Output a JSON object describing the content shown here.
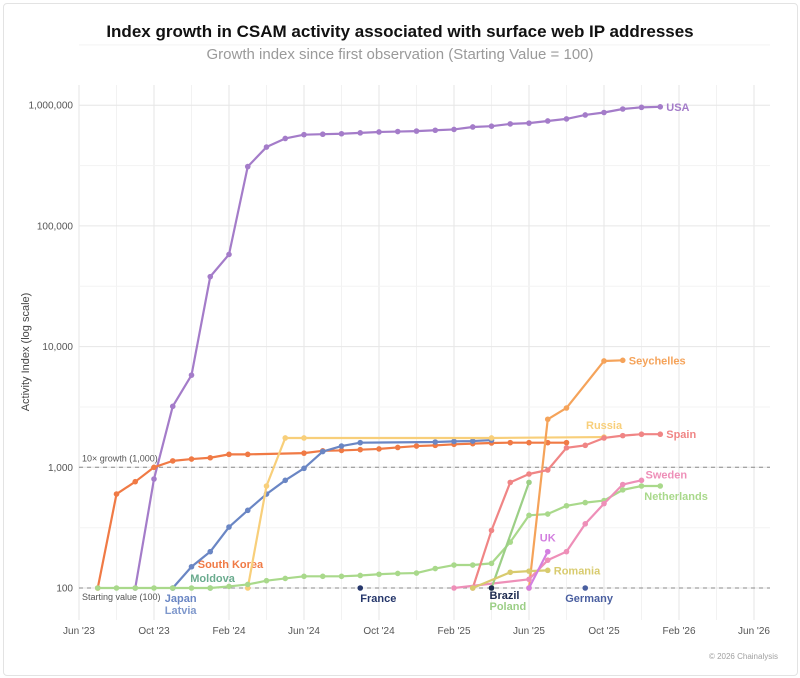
{
  "title": "Index growth in CSAM activity associated with surface web IP addresses",
  "subtitle": "Growth index since first observation (Starting Value = 100)",
  "credit": "© 2026 Chainalysis",
  "chart_data": {
    "type": "line",
    "title": "Index growth in CSAM activity associated with surface web IP addresses",
    "subtitle": "Growth index since first observation (Starting Value = 100)",
    "ylabel": "Activity Index (log scale)",
    "xlabel": "",
    "yscale": "log",
    "ylim": [
      60,
      1500000
    ],
    "xlim": [
      "2023-06",
      "2026-06"
    ],
    "grid": true,
    "legend": "none (direct labels)",
    "x_ticks": [
      {
        "date": "2023-06",
        "label": "Jun '23"
      },
      {
        "date": "2023-10",
        "label": "Oct '23"
      },
      {
        "date": "2024-02",
        "label": "Feb '24"
      },
      {
        "date": "2024-06",
        "label": "Jun '24"
      },
      {
        "date": "2024-10",
        "label": "Oct '24"
      },
      {
        "date": "2025-02",
        "label": "Feb '25"
      },
      {
        "date": "2025-06",
        "label": "Jun '25"
      },
      {
        "date": "2025-10",
        "label": "Oct '25"
      },
      {
        "date": "2026-02",
        "label": "Feb '26"
      },
      {
        "date": "2026-06",
        "label": "Jun '26"
      }
    ],
    "y_ticks": [
      {
        "value": 100,
        "label": "100"
      },
      {
        "value": 1000,
        "label": "1,000"
      },
      {
        "value": 10000,
        "label": "10,000"
      },
      {
        "value": 100000,
        "label": "100,000"
      },
      {
        "value": 1000000,
        "label": "1,000,000"
      }
    ],
    "reference_lines": [
      {
        "value": 100,
        "label": "Starting value (100)"
      },
      {
        "value": 1000,
        "label": "10× growth (1,000)"
      }
    ],
    "series": [
      {
        "name": "USA",
        "color": "#a47cc9",
        "x": [
          "2023-09",
          "2023-10",
          "2023-11",
          "2023-12",
          "2024-01",
          "2024-02",
          "2024-03",
          "2024-04",
          "2024-05",
          "2024-06",
          "2024-07",
          "2024-08",
          "2024-09",
          "2024-10",
          "2024-11",
          "2024-12",
          "2025-01",
          "2025-02",
          "2025-03",
          "2025-04",
          "2025-05",
          "2025-06",
          "2025-07",
          "2025-08",
          "2025-09",
          "2025-10",
          "2025-11",
          "2025-12",
          "2026-01"
        ],
        "y": [
          100,
          800,
          3200,
          5800,
          38000,
          58000,
          310000,
          450000,
          530000,
          570000,
          575000,
          580000,
          590000,
          600000,
          605000,
          610000,
          620000,
          630000,
          660000,
          670000,
          700000,
          710000,
          740000,
          770000,
          830000,
          870000,
          930000,
          960000,
          970000
        ]
      },
      {
        "name": "South Korea",
        "color": "#f07a45",
        "x": [
          "2023-07",
          "2023-08",
          "2023-09",
          "2023-10",
          "2023-11",
          "2023-12",
          "2024-01",
          "2024-02",
          "2024-03",
          "2024-06",
          "2024-07",
          "2024-08",
          "2024-09",
          "2024-10",
          "2024-11",
          "2024-12",
          "2025-01",
          "2025-02",
          "2025-03",
          "2025-04",
          "2025-05",
          "2025-06",
          "2025-07",
          "2025-08"
        ],
        "y": [
          100,
          600,
          760,
          1000,
          1130,
          1170,
          1200,
          1280,
          1280,
          1310,
          1370,
          1380,
          1400,
          1420,
          1460,
          1500,
          1520,
          1550,
          1570,
          1590,
          1600,
          1600,
          1600,
          1600
        ]
      },
      {
        "name": "Japan",
        "color": "#6a86c4",
        "x": [
          "2023-11",
          "2023-12",
          "2024-01",
          "2024-02",
          "2024-03",
          "2024-04",
          "2024-05",
          "2024-06",
          "2024-07",
          "2024-08",
          "2024-09",
          "2025-01",
          "2025-02",
          "2025-03",
          "2025-04"
        ],
        "y": [
          100,
          150,
          200,
          320,
          440,
          600,
          780,
          980,
          1350,
          1500,
          1600,
          1620,
          1640,
          1650,
          1680
        ]
      },
      {
        "name": "Latvia",
        "color": "#7f98cc",
        "x": [
          "2023-11"
        ],
        "y": [
          100
        ]
      },
      {
        "name": "Russia",
        "color": "#f8cf7a",
        "x": [
          "2024-03",
          "2024-04",
          "2024-05",
          "2024-06",
          "2025-04",
          "2025-10"
        ],
        "y": [
          100,
          700,
          1750,
          1750,
          1750,
          1780
        ]
      },
      {
        "name": "Moldova",
        "color": "#6aab8e",
        "x": [
          "2024-01"
        ],
        "y": [
          100
        ]
      },
      {
        "name": "Netherlands",
        "color": "#a9d98b",
        "x": [
          "2023-07",
          "2023-08",
          "2023-09",
          "2023-10",
          "2023-11",
          "2023-12",
          "2024-01",
          "2024-02",
          "2024-03",
          "2024-04",
          "2024-05",
          "2024-06",
          "2024-07",
          "2024-08",
          "2024-09",
          "2024-10",
          "2024-11",
          "2024-12",
          "2025-01",
          "2025-02",
          "2025-03",
          "2025-04",
          "2025-05",
          "2025-06",
          "2025-07",
          "2025-08",
          "2025-09",
          "2025-10",
          "2025-11",
          "2025-12",
          "2026-01"
        ],
        "y": [
          100,
          100,
          100,
          100,
          100,
          100,
          100,
          103,
          107,
          115,
          120,
          125,
          125,
          125,
          127,
          130,
          132,
          133,
          145,
          155,
          155,
          160,
          240,
          400,
          410,
          480,
          510,
          530,
          650,
          700,
          700
        ]
      },
      {
        "name": "France",
        "color": "#26376b",
        "x": [
          "2024-09"
        ],
        "y": [
          100
        ]
      },
      {
        "name": "Seychelles",
        "color": "#f5a35a",
        "x": [
          "2025-06",
          "2025-07",
          "2025-08",
          "2025-10",
          "2025-11"
        ],
        "y": [
          100,
          2500,
          3100,
          7600,
          7700
        ]
      },
      {
        "name": "Spain",
        "color": "#f08585",
        "x": [
          "2025-03",
          "2025-04",
          "2025-05",
          "2025-06",
          "2025-07",
          "2025-08",
          "2025-09",
          "2025-10",
          "2025-11",
          "2025-12",
          "2026-01"
        ],
        "y": [
          100,
          300,
          750,
          880,
          950,
          1450,
          1520,
          1750,
          1830,
          1880,
          1880
        ]
      },
      {
        "name": "Sweden",
        "color": "#ee8fb8",
        "x": [
          "2025-02",
          "2025-06",
          "2025-07",
          "2025-08",
          "2025-09",
          "2025-10",
          "2025-11",
          "2025-12"
        ],
        "y": [
          100,
          118,
          170,
          200,
          340,
          500,
          720,
          780
        ]
      },
      {
        "name": "Poland",
        "color": "#9ccf86",
        "x": [
          "2025-04",
          "2025-06"
        ],
        "y": [
          100,
          750
        ]
      },
      {
        "name": "Brazil",
        "color": "#1d2a4f",
        "x": [
          "2025-04"
        ],
        "y": [
          100
        ]
      },
      {
        "name": "Romania",
        "color": "#d8cb6e",
        "x": [
          "2025-03",
          "2025-05",
          "2025-06",
          "2025-07"
        ],
        "y": [
          100,
          135,
          138,
          140
        ]
      },
      {
        "name": "UK",
        "color": "#d37fe0",
        "x": [
          "2025-06",
          "2025-07"
        ],
        "y": [
          100,
          200
        ]
      },
      {
        "name": "Germany",
        "color": "#4a5fa0",
        "x": [
          "2025-09"
        ],
        "y": [
          100
        ]
      }
    ]
  }
}
